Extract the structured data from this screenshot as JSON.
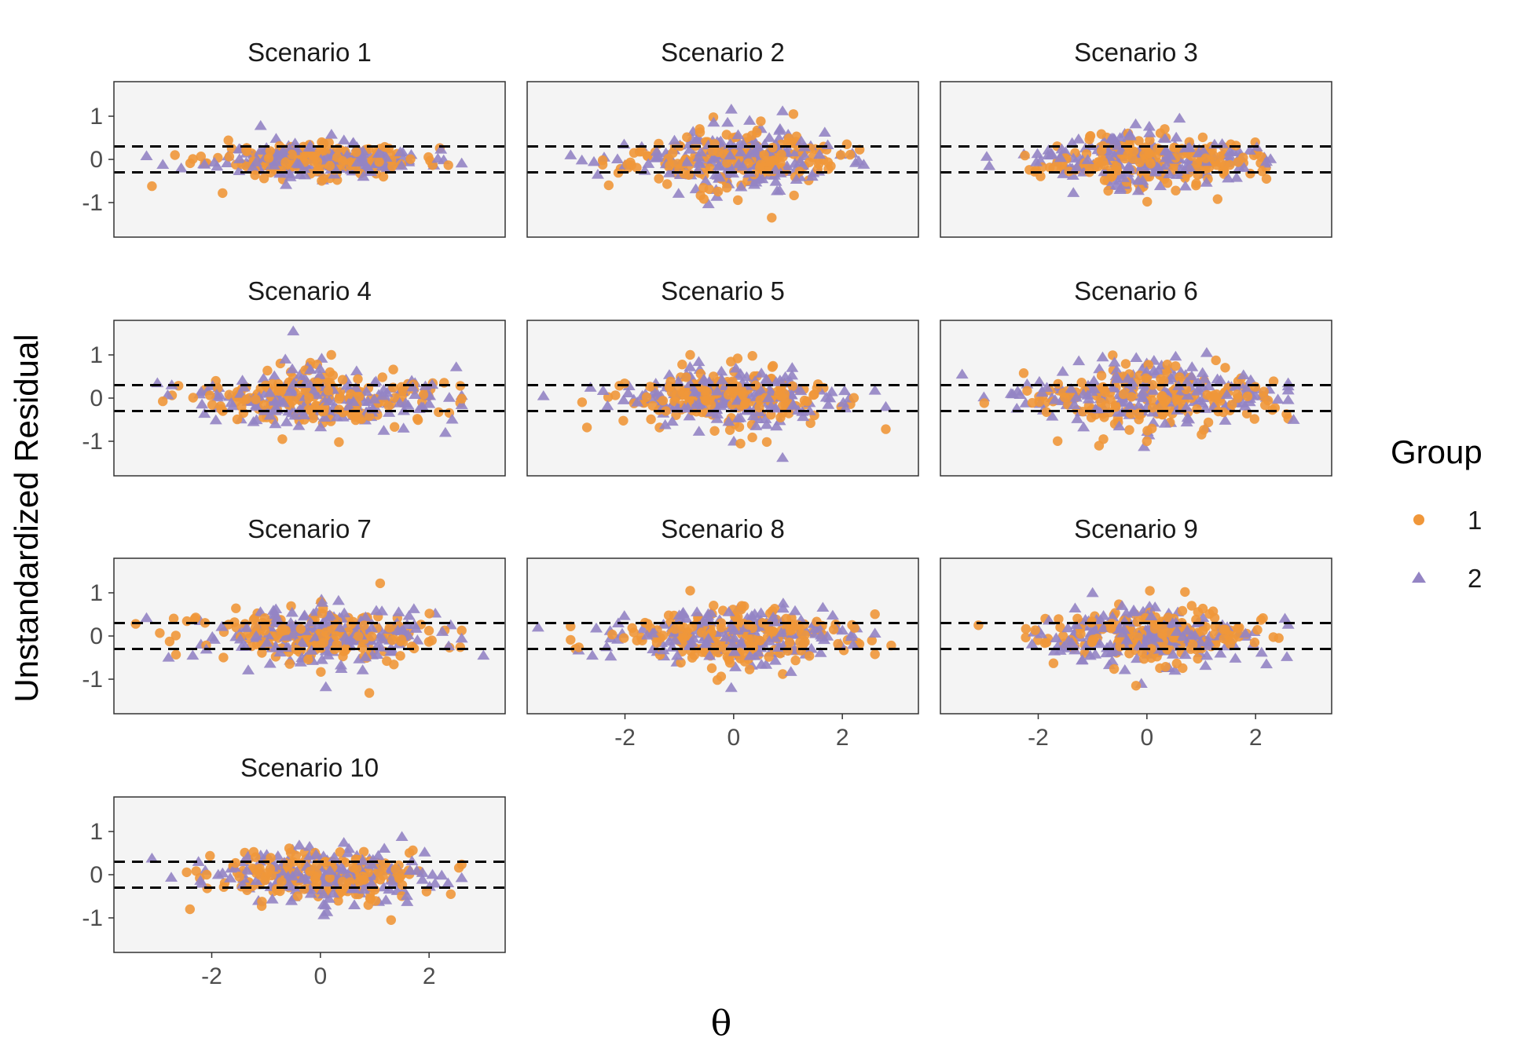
{
  "chart_data": {
    "type": "scatter",
    "layout": "faceted 3 columns",
    "ylabel": "Unstandardized Residual",
    "xlabel": "θ",
    "xlim": [
      -3.8,
      3.4
    ],
    "ylim": [
      -1.8,
      1.8
    ],
    "x_ticks": [
      -2,
      0,
      2
    ],
    "y_ticks": [
      1,
      0,
      -1
    ],
    "reference_lines": [
      0.3,
      -0.3
    ],
    "reference_line_style": "dashed",
    "panel_background": "#f4f4f4",
    "legend": {
      "title": "Group",
      "placement": "right",
      "entries": [
        {
          "label": "1",
          "shape": "circle",
          "color": "#f0973a"
        },
        {
          "label": "2",
          "shape": "triangle",
          "color": "#9484c4"
        }
      ]
    },
    "panels": [
      {
        "title": "Scenario 1",
        "seed": 11,
        "spread": 0.22,
        "xsd": 0.95,
        "group1_points": [
          {
            "x": -3.1,
            "y": -0.62
          },
          {
            "x": -1.8,
            "y": -0.78
          }
        ],
        "group2_points": [
          {
            "x": -3.2,
            "y": 0.08
          },
          {
            "x": -2.9,
            "y": -0.12
          },
          {
            "x": -1.1,
            "y": 0.78
          }
        ]
      },
      {
        "title": "Scenario 2",
        "seed": 23,
        "spread": 0.38,
        "xsd": 0.95,
        "group1_points": [
          {
            "x": 0.7,
            "y": -1.35
          },
          {
            "x": -2.3,
            "y": -0.6
          },
          {
            "x": 1.1,
            "y": 1.05
          }
        ],
        "group2_points": [
          {
            "x": -3.0,
            "y": 0.1
          },
          {
            "x": -2.5,
            "y": -0.35
          },
          {
            "x": 0.9,
            "y": 1.12
          }
        ]
      },
      {
        "title": "Scenario 3",
        "seed": 37,
        "spread": 0.35,
        "xsd": 0.95,
        "group1_points": [
          {
            "x": 2.2,
            "y": -0.45
          },
          {
            "x": 1.3,
            "y": -0.92
          }
        ],
        "group2_points": [
          {
            "x": -2.9,
            "y": -0.15
          },
          {
            "x": 2.2,
            "y": -0.05
          },
          {
            "x": 0.6,
            "y": 0.95
          }
        ]
      },
      {
        "title": "Scenario 4",
        "seed": 41,
        "spread": 0.38,
        "xsd": 1.2,
        "group1_points": [
          {
            "x": 0.2,
            "y": 1.0
          },
          {
            "x": -0.7,
            "y": -0.95
          }
        ],
        "group2_points": [
          {
            "x": -3.0,
            "y": 0.35
          },
          {
            "x": 2.5,
            "y": 0.72
          },
          {
            "x": 2.3,
            "y": -0.8
          },
          {
            "x": -0.5,
            "y": 1.55
          }
        ]
      },
      {
        "title": "Scenario 5",
        "seed": 53,
        "spread": 0.38,
        "xsd": 1.05,
        "group1_points": [
          {
            "x": 2.8,
            "y": -0.72
          },
          {
            "x": -2.7,
            "y": -0.68
          },
          {
            "x": -0.8,
            "y": 1.0
          }
        ],
        "group2_points": [
          {
            "x": -3.5,
            "y": 0.05
          },
          {
            "x": 0.9,
            "y": -1.38
          },
          {
            "x": 2.8,
            "y": -0.2
          }
        ]
      },
      {
        "title": "Scenario 6",
        "seed": 67,
        "spread": 0.42,
        "xsd": 1.1,
        "group1_points": [
          {
            "x": 0.0,
            "y": -1.0
          },
          {
            "x": -0.8,
            "y": -0.95
          }
        ],
        "group2_points": [
          {
            "x": -3.4,
            "y": 0.55
          },
          {
            "x": 2.7,
            "y": -0.5
          },
          {
            "x": 1.1,
            "y": 1.05
          }
        ]
      },
      {
        "title": "Scenario 7",
        "seed": 71,
        "spread": 0.38,
        "xsd": 1.1,
        "group1_points": [
          {
            "x": 0.9,
            "y": -1.32
          },
          {
            "x": 1.1,
            "y": 1.22
          },
          {
            "x": -3.4,
            "y": 0.28
          }
        ],
        "group2_points": [
          {
            "x": -3.2,
            "y": 0.42
          },
          {
            "x": 3.0,
            "y": -0.45
          }
        ]
      },
      {
        "title": "Scenario 8",
        "seed": 83,
        "spread": 0.38,
        "xsd": 1.1,
        "group1_points": [
          {
            "x": -0.3,
            "y": -1.02
          },
          {
            "x": 2.9,
            "y": -0.22
          },
          {
            "x": -0.8,
            "y": 1.05
          }
        ],
        "group2_points": [
          {
            "x": -3.6,
            "y": 0.2
          },
          {
            "x": -2.6,
            "y": -0.45
          },
          {
            "x": 2.2,
            "y": -0.2
          }
        ]
      },
      {
        "title": "Scenario 9",
        "seed": 97,
        "spread": 0.38,
        "xsd": 1.05,
        "group1_points": [
          {
            "x": -3.1,
            "y": 0.25
          },
          {
            "x": -0.2,
            "y": -1.15
          },
          {
            "x": 0.7,
            "y": 1.02
          }
        ],
        "group2_points": [
          {
            "x": 2.2,
            "y": -0.65
          },
          {
            "x": -1.0,
            "y": 1.0
          }
        ]
      },
      {
        "title": "Scenario 10",
        "seed": 101,
        "spread": 0.35,
        "xsd": 1.0,
        "group1_points": [
          {
            "x": 2.4,
            "y": -0.45
          },
          {
            "x": 1.3,
            "y": -1.05
          },
          {
            "x": -2.4,
            "y": -0.8
          }
        ],
        "group2_points": [
          {
            "x": -3.1,
            "y": 0.38
          },
          {
            "x": 1.5,
            "y": 0.88
          }
        ]
      }
    ],
    "note": "Each panel shows ~200 points per group; scattered points are drawn from the panel's seed/spread values."
  }
}
